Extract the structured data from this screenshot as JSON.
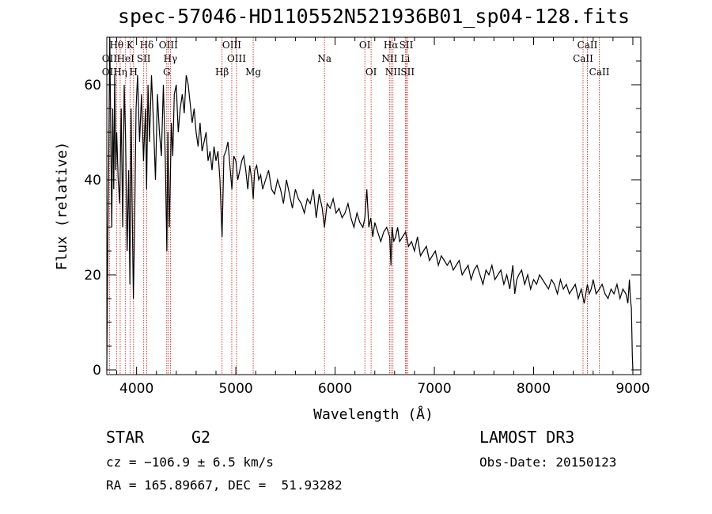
{
  "chart_data": {
    "type": "line",
    "title": "spec-57046-HD110552N521936B01_sp04-128.fits",
    "xlabel": "Wavelength (Å)",
    "ylabel": "Flux (relative)",
    "xlim": [
      3700,
      9080
    ],
    "ylim": [
      -1,
      70
    ],
    "xticks": [
      4000,
      5000,
      6000,
      7000,
      8000,
      9000
    ],
    "xtick_labels": [
      "4000",
      "5000",
      "6000",
      "7000",
      "8000",
      "9000"
    ],
    "yticks": [
      0,
      20,
      40,
      60
    ],
    "ytick_labels": [
      "0",
      "20",
      "40",
      "60"
    ],
    "series": [
      {
        "name": "spectrum",
        "x": [
          3700,
          3710,
          3720,
          3730,
          3740,
          3750,
          3760,
          3770,
          3780,
          3790,
          3800,
          3815,
          3830,
          3845,
          3860,
          3875,
          3890,
          3905,
          3920,
          3933,
          3945,
          3955,
          3968,
          3980,
          3995,
          4010,
          4030,
          4050,
          4070,
          4090,
          4101,
          4115,
          4130,
          4150,
          4170,
          4190,
          4210,
          4230,
          4250,
          4270,
          4290,
          4305,
          4315,
          4330,
          4340,
          4350,
          4365,
          4380,
          4400,
          4420,
          4440,
          4460,
          4480,
          4500,
          4520,
          4540,
          4560,
          4580,
          4600,
          4620,
          4640,
          4660,
          4680,
          4700,
          4720,
          4740,
          4760,
          4780,
          4800,
          4820,
          4840,
          4861,
          4880,
          4900,
          4920,
          4940,
          4960,
          4980,
          5000,
          5020,
          5040,
          5060,
          5080,
          5100,
          5120,
          5140,
          5160,
          5175,
          5190,
          5210,
          5230,
          5250,
          5270,
          5300,
          5330,
          5360,
          5390,
          5420,
          5450,
          5480,
          5510,
          5540,
          5570,
          5600,
          5630,
          5660,
          5690,
          5720,
          5750,
          5780,
          5810,
          5840,
          5870,
          5893,
          5920,
          5950,
          5980,
          6010,
          6040,
          6070,
          6100,
          6130,
          6160,
          6190,
          6220,
          6250,
          6280,
          6300,
          6320,
          6340,
          6360,
          6380,
          6400,
          6430,
          6460,
          6490,
          6520,
          6550,
          6563,
          6575,
          6590,
          6610,
          6630,
          6650,
          6680,
          6710,
          6740,
          6770,
          6800,
          6830,
          6860,
          6890,
          6920,
          6950,
          6980,
          7010,
          7040,
          7070,
          7100,
          7130,
          7160,
          7190,
          7220,
          7250,
          7280,
          7310,
          7340,
          7370,
          7400,
          7430,
          7460,
          7490,
          7520,
          7550,
          7580,
          7610,
          7640,
          7670,
          7700,
          7730,
          7760,
          7790,
          7810,
          7830,
          7850,
          7880,
          7910,
          7940,
          7970,
          8000,
          8030,
          8060,
          8090,
          8120,
          8150,
          8180,
          8210,
          8240,
          8270,
          8300,
          8330,
          8360,
          8390,
          8420,
          8450,
          8480,
          8510,
          8542,
          8560,
          8580,
          8600,
          8630,
          8662,
          8690,
          8720,
          8750,
          8780,
          8810,
          8840,
          8870,
          8900,
          8930,
          8950,
          8965,
          8975,
          8985,
          8990,
          8995,
          9000
        ],
        "y": [
          0,
          28,
          45,
          70,
          50,
          30,
          55,
          38,
          62,
          42,
          50,
          40,
          35,
          55,
          30,
          60,
          48,
          25,
          42,
          18,
          55,
          35,
          15,
          30,
          55,
          62,
          48,
          58,
          44,
          55,
          38,
          60,
          48,
          62,
          52,
          40,
          58,
          50,
          45,
          60,
          44,
          25,
          50,
          30,
          40,
          52,
          45,
          58,
          60,
          50,
          55,
          58,
          54,
          62,
          60,
          56,
          52,
          55,
          50,
          47,
          52,
          46,
          48,
          50,
          44,
          46,
          42,
          47,
          44,
          46,
          40,
          28,
          45,
          46,
          48,
          43,
          38,
          45,
          44,
          40,
          42,
          44,
          45,
          42,
          38,
          43,
          40,
          36,
          42,
          43,
          40,
          41,
          38,
          40,
          42,
          38,
          37,
          40,
          38,
          35,
          40,
          37,
          34,
          38,
          36,
          35,
          33,
          36,
          35,
          38,
          32,
          37,
          34,
          30,
          35,
          34,
          36,
          33,
          34,
          32,
          33,
          35,
          32,
          30,
          33,
          31,
          30,
          32,
          38,
          30,
          32,
          28,
          31,
          29,
          27,
          29,
          30,
          28,
          22,
          30,
          27,
          28,
          30,
          27,
          28,
          29,
          26,
          27,
          25,
          28,
          24,
          25,
          26,
          23,
          24,
          25,
          22,
          24,
          23,
          22,
          23,
          21,
          22,
          23,
          20,
          21,
          22,
          19,
          21,
          22,
          20,
          18,
          21,
          20,
          22,
          19,
          20,
          21,
          18,
          20,
          17,
          22,
          16,
          19,
          20,
          21,
          18,
          20,
          17,
          19,
          18,
          20,
          19,
          18,
          17,
          19,
          18,
          16,
          19,
          17,
          18,
          16,
          17,
          18,
          15,
          17,
          14,
          18,
          16,
          17,
          19,
          16,
          17,
          18,
          16,
          15,
          17,
          16,
          18,
          15,
          17,
          16,
          14,
          19,
          15,
          13,
          8,
          3,
          0
        ]
      }
    ],
    "lines": [
      {
        "label": "Hθ",
        "wavelength": 3798,
        "row": 1
      },
      {
        "label": "OII",
        "wavelength": 3727,
        "row": 2
      },
      {
        "label": "OII",
        "wavelength": 3727,
        "row": 3
      },
      {
        "label": "Hη",
        "wavelength": 3835,
        "row": 3
      },
      {
        "label": "HeI",
        "wavelength": 3889,
        "row": 2
      },
      {
        "label": "K",
        "wavelength": 3934,
        "row": 1
      },
      {
        "label": "H",
        "wavelength": 3969,
        "row": 3
      },
      {
        "label": "SII",
        "wavelength": 4072,
        "row": 2
      },
      {
        "label": "Hδ",
        "wavelength": 4102,
        "row": 1
      },
      {
        "label": "OIII",
        "wavelength": 4320,
        "row": 1
      },
      {
        "label": "Hγ",
        "wavelength": 4341,
        "row": 2
      },
      {
        "label": "G",
        "wavelength": 4304,
        "row": 3
      },
      {
        "label": "Hβ",
        "wavelength": 4861,
        "row": 3
      },
      {
        "label": "OIII",
        "wavelength": 4959,
        "row": 1
      },
      {
        "label": "OIII",
        "wavelength": 5007,
        "row": 2
      },
      {
        "label": "Mg",
        "wavelength": 5175,
        "row": 3
      },
      {
        "label": "Na",
        "wavelength": 5893,
        "row": 2
      },
      {
        "label": "OI",
        "wavelength": 6300,
        "row": 1
      },
      {
        "label": "OI",
        "wavelength": 6363,
        "row": 3
      },
      {
        "label": "Hα",
        "wavelength": 6563,
        "row": 1
      },
      {
        "label": "NII",
        "wavelength": 6548,
        "row": 2
      },
      {
        "label": "NII",
        "wavelength": 6583,
        "row": 3
      },
      {
        "label": "SII",
        "wavelength": 6717,
        "row": 1
      },
      {
        "label": "Li",
        "wavelength": 6708,
        "row": 2
      },
      {
        "label": "SII",
        "wavelength": 6731,
        "row": 3
      },
      {
        "label": "CaII",
        "wavelength": 8542,
        "row": 1
      },
      {
        "label": "CaII",
        "wavelength": 8498,
        "row": 2
      },
      {
        "label": "CaII",
        "wavelength": 8662,
        "row": 3
      }
    ]
  },
  "info": {
    "class_label": "STAR",
    "subclass": "G2",
    "survey": "LAMOST DR3",
    "cz": "cz = −106.9 ± 6.5 km/s",
    "obs_date": "Obs-Date: 20150123",
    "coords": "RA = 165.89667, DEC =  51.93282"
  },
  "colors": {
    "line_marker": "#cc2a2a",
    "spectrum": "#000000",
    "axes": "#000000"
  }
}
